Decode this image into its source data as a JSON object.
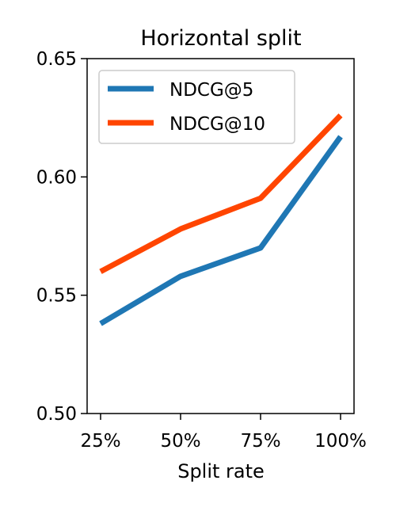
{
  "chart_data": {
    "type": "line",
    "title": "Horizontal split",
    "xlabel": "Split rate",
    "ylabel": "",
    "categories": [
      "25%",
      "50%",
      "75%",
      "100%"
    ],
    "ylim": [
      0.5,
      0.65
    ],
    "yticks": [
      0.5,
      0.55,
      0.6,
      0.65
    ],
    "ytick_labels": [
      "0.50",
      "0.55",
      "0.60",
      "0.65"
    ],
    "grid": false,
    "legend_position": "top-left",
    "series": [
      {
        "name": "NDCG@5",
        "color": "#1f77b4",
        "values": [
          0.538,
          0.558,
          0.57,
          0.617
        ]
      },
      {
        "name": "NDCG@10",
        "color": "#ff4500",
        "values": [
          0.56,
          0.578,
          0.591,
          0.626
        ]
      }
    ]
  }
}
